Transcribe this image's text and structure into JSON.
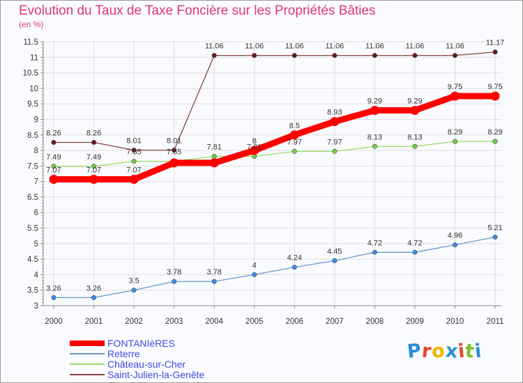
{
  "chart_data": {
    "type": "line",
    "title": "Evolution du Taux de Taxe Foncière sur les Propriétés Bâties",
    "ylabel": "(en %)",
    "xlabel": "",
    "x": [
      "2000",
      "2001",
      "2002",
      "2003",
      "2004",
      "2005",
      "2006",
      "2007",
      "2008",
      "2009",
      "2010",
      "2011"
    ],
    "ylim": [
      3,
      11.5
    ],
    "yticks": [
      "3",
      "3.5",
      "4",
      "4.5",
      "5",
      "5.5",
      "6",
      "6.5",
      "7",
      "7.5",
      "8",
      "8.5",
      "9",
      "9.5",
      "10",
      "10.5",
      "11",
      "11.5"
    ],
    "grid": true,
    "legend_position": "bottom-left",
    "series": [
      {
        "name": "FONTANIèRES",
        "color": "#ff0000",
        "marker_color": "#ff0000",
        "values": [
          7.07,
          7.07,
          7.07,
          7.6,
          7.6,
          8,
          8.5,
          8.93,
          9.29,
          9.29,
          9.75,
          9.75
        ],
        "labels": [
          "7.07",
          "7.07",
          "7.07",
          "",
          "",
          "8",
          "8.5",
          "8.93",
          "9.29",
          "9.29",
          "9.75",
          "9.75"
        ]
      },
      {
        "name": "Reterre",
        "color": "#6699cc",
        "marker_color": "#3a8ee6",
        "values": [
          3.26,
          3.26,
          3.5,
          3.78,
          3.78,
          4,
          4.24,
          4.45,
          4.72,
          4.72,
          4.96,
          5.21
        ],
        "labels": [
          "3.26",
          "3.26",
          "3.5",
          "3.78",
          "3.78",
          "4",
          "4.24",
          "4.45",
          "4.72",
          "4.72",
          "4.96",
          "5.21"
        ]
      },
      {
        "name": "Château-sur-Cher",
        "color": "#99dd66",
        "marker_color": "#77cc44",
        "values": [
          7.49,
          7.49,
          7.65,
          7.65,
          7.81,
          7.81,
          7.97,
          7.97,
          8.13,
          8.13,
          8.29,
          8.29
        ],
        "labels": [
          "7.49",
          "7.49",
          "7.65",
          "7.65",
          "7.81",
          "7.81",
          "7.97",
          "7.97",
          "8.13",
          "8.13",
          "8.29",
          "8.29"
        ]
      },
      {
        "name": "Saint-Julien-la-Genête",
        "color": "#884444",
        "marker_color": "#661a1a",
        "values": [
          8.26,
          8.26,
          8.01,
          8.01,
          11.06,
          11.06,
          11.06,
          11.06,
          11.06,
          11.06,
          11.06,
          11.17
        ],
        "labels": [
          "8.26",
          "8.26",
          "8.01",
          "8.01",
          "11.06",
          "11.06",
          "11.06",
          "11.06",
          "11.06",
          "11.06",
          "11.06",
          "11.17"
        ]
      }
    ]
  },
  "logo": {
    "letters": [
      "P",
      "r",
      "o",
      "x",
      "i",
      "t",
      "i"
    ],
    "colors": [
      "#2d8fd6",
      "#e2462d",
      "#f2b400",
      "#2d8fd6",
      "#e2462d",
      "#7cbf2a",
      "#2d8fd6"
    ]
  }
}
